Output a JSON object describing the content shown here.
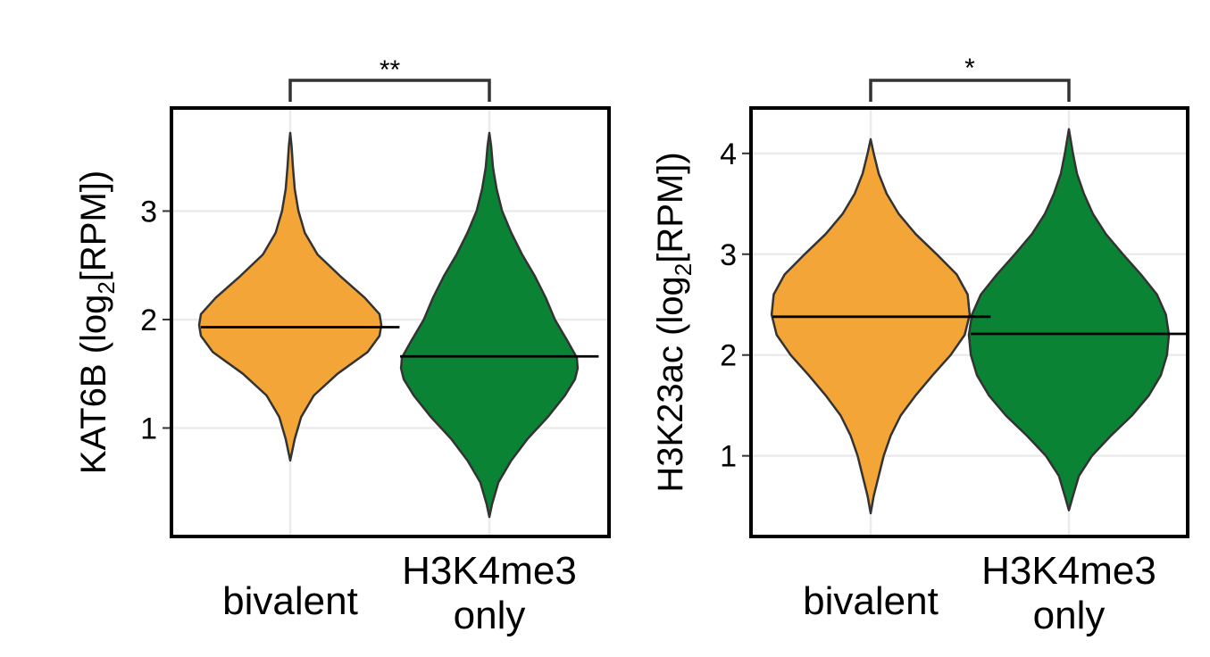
{
  "chart_data": [
    {
      "type": "violin",
      "ylabel": "KAT6B (log2[RPM])",
      "ylabel_parts": [
        "KAT6B (log",
        "2",
        "[RPM])"
      ],
      "categories": [
        "bivalent",
        "H3K4me3 only"
      ],
      "category_label_lines": [
        [
          "bivalent"
        ],
        [
          "H3K4me3",
          "only"
        ]
      ],
      "yticks": [
        "1",
        "2",
        "3"
      ],
      "ylim": [
        0.0,
        3.95
      ],
      "grid": true,
      "significance": "**",
      "colors": [
        "#f4a537",
        "#0a8434"
      ],
      "violins": [
        {
          "name": "bivalent",
          "min": 0.7,
          "max": 3.72,
          "median": 1.93,
          "profile": [
            [
              0.7,
              0.0
            ],
            [
              0.9,
              0.05
            ],
            [
              1.1,
              0.12
            ],
            [
              1.3,
              0.26
            ],
            [
              1.5,
              0.52
            ],
            [
              1.7,
              0.85
            ],
            [
              1.85,
              0.98
            ],
            [
              1.95,
              1.0
            ],
            [
              2.05,
              0.98
            ],
            [
              2.2,
              0.82
            ],
            [
              2.4,
              0.55
            ],
            [
              2.6,
              0.3
            ],
            [
              2.8,
              0.16
            ],
            [
              3.0,
              0.09
            ],
            [
              3.2,
              0.05
            ],
            [
              3.4,
              0.03
            ],
            [
              3.6,
              0.015
            ],
            [
              3.72,
              0.0
            ]
          ]
        },
        {
          "name": "H3K4me3 only",
          "min": 0.18,
          "max": 3.72,
          "median": 1.66,
          "profile": [
            [
              0.18,
              0.0
            ],
            [
              0.3,
              0.03
            ],
            [
              0.5,
              0.1
            ],
            [
              0.7,
              0.24
            ],
            [
              0.9,
              0.42
            ],
            [
              1.1,
              0.64
            ],
            [
              1.3,
              0.83
            ],
            [
              1.45,
              0.94
            ],
            [
              1.55,
              0.97
            ],
            [
              1.65,
              0.96
            ],
            [
              1.8,
              0.86
            ],
            [
              2.0,
              0.72
            ],
            [
              2.2,
              0.62
            ],
            [
              2.4,
              0.5
            ],
            [
              2.6,
              0.36
            ],
            [
              2.8,
              0.24
            ],
            [
              3.0,
              0.14
            ],
            [
              3.2,
              0.08
            ],
            [
              3.4,
              0.04
            ],
            [
              3.6,
              0.02
            ],
            [
              3.72,
              0.0
            ]
          ]
        }
      ]
    },
    {
      "type": "violin",
      "ylabel": "H3K23ac (log2[RPM])",
      "ylabel_parts": [
        "H3K23ac (log",
        "2",
        "[RPM])"
      ],
      "categories": [
        "bivalent",
        "H3K4me3 only"
      ],
      "category_label_lines": [
        [
          "bivalent"
        ],
        [
          "H3K4me3",
          "only"
        ]
      ],
      "yticks": [
        "1",
        "2",
        "3",
        "4"
      ],
      "ylim": [
        0.2,
        4.45
      ],
      "grid": true,
      "significance": "*",
      "colors": [
        "#f4a537",
        "#0a8434"
      ],
      "violins": [
        {
          "name": "bivalent",
          "min": 0.43,
          "max": 4.14,
          "median": 2.38,
          "profile": [
            [
              0.43,
              0.0
            ],
            [
              0.6,
              0.03
            ],
            [
              0.8,
              0.08
            ],
            [
              1.0,
              0.13
            ],
            [
              1.2,
              0.2
            ],
            [
              1.4,
              0.3
            ],
            [
              1.6,
              0.45
            ],
            [
              1.8,
              0.62
            ],
            [
              2.0,
              0.8
            ],
            [
              2.2,
              0.94
            ],
            [
              2.4,
              0.99
            ],
            [
              2.6,
              0.97
            ],
            [
              2.8,
              0.86
            ],
            [
              3.0,
              0.66
            ],
            [
              3.2,
              0.45
            ],
            [
              3.4,
              0.28
            ],
            [
              3.6,
              0.16
            ],
            [
              3.8,
              0.08
            ],
            [
              4.0,
              0.03
            ],
            [
              4.14,
              0.0
            ]
          ]
        },
        {
          "name": "H3K4me3 only",
          "min": 0.46,
          "max": 4.24,
          "median": 2.21,
          "profile": [
            [
              0.46,
              0.0
            ],
            [
              0.6,
              0.04
            ],
            [
              0.8,
              0.1
            ],
            [
              1.0,
              0.23
            ],
            [
              1.2,
              0.42
            ],
            [
              1.4,
              0.63
            ],
            [
              1.6,
              0.8
            ],
            [
              1.8,
              0.92
            ],
            [
              2.0,
              0.98
            ],
            [
              2.2,
              1.0
            ],
            [
              2.4,
              0.97
            ],
            [
              2.6,
              0.88
            ],
            [
              2.8,
              0.72
            ],
            [
              3.0,
              0.54
            ],
            [
              3.2,
              0.37
            ],
            [
              3.4,
              0.24
            ],
            [
              3.6,
              0.15
            ],
            [
              3.8,
              0.08
            ],
            [
              4.0,
              0.04
            ],
            [
              4.24,
              0.0
            ]
          ]
        }
      ]
    }
  ]
}
